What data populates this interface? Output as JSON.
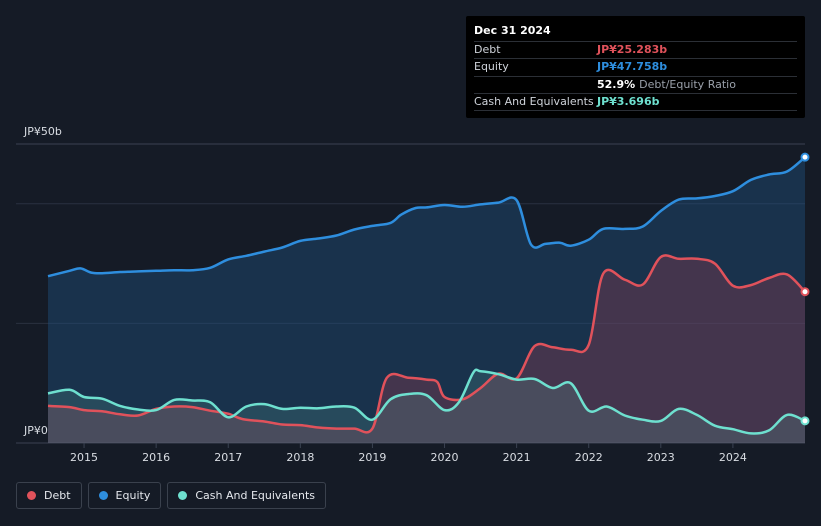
{
  "chart_data": {
    "type": "area",
    "ylim": [
      0,
      50
    ],
    "xlim": [
      2014.5,
      2025.0
    ],
    "ytick_labels": [
      "JP¥0",
      "JP¥50b"
    ],
    "xtick_labels": [
      "2015",
      "2016",
      "2017",
      "2018",
      "2019",
      "2020",
      "2021",
      "2022",
      "2023",
      "2024"
    ],
    "xtick_values": [
      2015,
      2016,
      2017,
      2018,
      2019,
      2020,
      2021,
      2022,
      2023,
      2024
    ],
    "gridlines": [
      0,
      20,
      40,
      50
    ],
    "series": [
      {
        "name": "Equity",
        "color": "#2e8ede",
        "x": [
          2014.5,
          2014.8,
          2014.95,
          2015.1,
          2015.25,
          2015.5,
          2015.75,
          2016.0,
          2016.25,
          2016.5,
          2016.75,
          2017.0,
          2017.25,
          2017.5,
          2017.75,
          2018.0,
          2018.25,
          2018.5,
          2018.75,
          2019.0,
          2019.25,
          2019.4,
          2019.6,
          2019.75,
          2020.0,
          2020.25,
          2020.5,
          2020.75,
          2021.0,
          2021.2,
          2021.4,
          2021.6,
          2021.75,
          2022.0,
          2022.2,
          2022.5,
          2022.75,
          2023.0,
          2023.25,
          2023.5,
          2023.75,
          2024.0,
          2024.25,
          2024.5,
          2024.75,
          2025.0
        ],
        "values": [
          27.9,
          28.8,
          29.2,
          28.5,
          28.4,
          28.6,
          28.7,
          28.8,
          28.9,
          28.9,
          29.3,
          30.7,
          31.3,
          32.0,
          32.7,
          33.8,
          34.2,
          34.7,
          35.7,
          36.3,
          36.8,
          38.2,
          39.3,
          39.4,
          39.8,
          39.5,
          39.9,
          40.2,
          40.6,
          33.2,
          33.3,
          33.5,
          33.0,
          34.0,
          35.8,
          35.8,
          36.2,
          38.8,
          40.7,
          40.9,
          41.3,
          42.1,
          44.0,
          44.9,
          45.4,
          47.8
        ]
      },
      {
        "name": "Debt",
        "color": "#e0525b",
        "x": [
          2014.5,
          2014.8,
          2015.0,
          2015.25,
          2015.5,
          2015.75,
          2016.0,
          2016.25,
          2016.5,
          2016.75,
          2017.0,
          2017.2,
          2017.5,
          2017.75,
          2018.0,
          2018.25,
          2018.5,
          2018.75,
          2019.0,
          2019.2,
          2019.5,
          2019.75,
          2019.9,
          2020.0,
          2020.25,
          2020.5,
          2020.75,
          2021.0,
          2021.25,
          2021.5,
          2021.75,
          2022.0,
          2022.2,
          2022.5,
          2022.75,
          2023.0,
          2023.25,
          2023.5,
          2023.75,
          2024.0,
          2024.25,
          2024.5,
          2024.75,
          2025.0
        ],
        "values": [
          6.2,
          6.0,
          5.5,
          5.3,
          4.8,
          4.6,
          5.7,
          6.1,
          6.0,
          5.4,
          4.9,
          4.0,
          3.6,
          3.1,
          3.0,
          2.6,
          2.4,
          2.4,
          2.4,
          10.9,
          10.9,
          10.6,
          10.2,
          7.7,
          7.3,
          9.2,
          11.6,
          10.8,
          16.2,
          16.0,
          15.6,
          16.4,
          28.3,
          27.3,
          26.5,
          31.1,
          30.8,
          30.8,
          30.0,
          26.3,
          26.4,
          27.6,
          28.2,
          25.3
        ]
      },
      {
        "name": "Cash And Equivalents",
        "color": "#6ee0cf",
        "x": [
          2014.5,
          2014.8,
          2015.0,
          2015.25,
          2015.5,
          2015.75,
          2016.0,
          2016.25,
          2016.5,
          2016.75,
          2017.0,
          2017.25,
          2017.5,
          2017.75,
          2018.0,
          2018.25,
          2018.5,
          2018.75,
          2019.0,
          2019.25,
          2019.5,
          2019.75,
          2020.0,
          2020.2,
          2020.4,
          2020.5,
          2020.75,
          2021.0,
          2021.25,
          2021.5,
          2021.75,
          2022.0,
          2022.25,
          2022.5,
          2022.75,
          2023.0,
          2023.25,
          2023.5,
          2023.75,
          2024.0,
          2024.25,
          2024.5,
          2024.75,
          2025.0
        ],
        "values": [
          8.3,
          8.9,
          7.7,
          7.4,
          6.2,
          5.6,
          5.5,
          7.2,
          7.1,
          6.8,
          4.3,
          6.1,
          6.5,
          5.7,
          5.9,
          5.8,
          6.1,
          5.9,
          3.9,
          7.3,
          8.2,
          8.0,
          5.5,
          6.8,
          11.8,
          12.0,
          11.5,
          10.6,
          10.7,
          9.2,
          10.0,
          5.4,
          6.1,
          4.6,
          3.9,
          3.7,
          5.7,
          4.7,
          2.9,
          2.3,
          1.6,
          2.1,
          4.7,
          3.7
        ]
      }
    ]
  },
  "tooltip": {
    "date": "Dec 31 2024",
    "debt_label": "Debt",
    "debt_value": "JP¥25.283b",
    "equity_label": "Equity",
    "equity_value": "JP¥47.758b",
    "ratio_value": "52.9%",
    "ratio_label": "Debt/Equity Ratio",
    "cash_label": "Cash And Equivalents",
    "cash_value": "JP¥3.696b"
  },
  "legend": [
    {
      "label": "Debt",
      "color": "#e0525b"
    },
    {
      "label": "Equity",
      "color": "#2e8ede"
    },
    {
      "label": "Cash And Equivalents",
      "color": "#6ee0cf"
    }
  ],
  "colors": {
    "background": "#151b26",
    "grid": "#2a3140",
    "axis_text": "#d9dde3"
  }
}
